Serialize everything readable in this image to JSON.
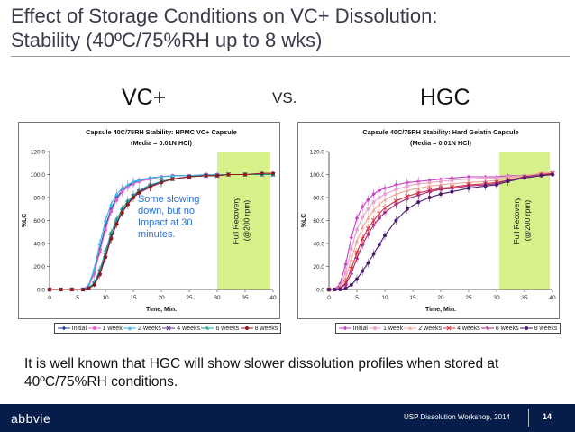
{
  "slide": {
    "title_line1": "Effect of Storage Conditions on VC+ Dissolution:",
    "title_line2": "Stability (40ºC/75%RH up to 8 wks)",
    "left_label": "VC+",
    "vs_label": "VS.",
    "right_label": "HGC",
    "note": "It is well known that HGC will show slower dissolution profiles when stored at 40ºC/75%RH conditions.",
    "footer_logo": "abbvie",
    "footer_event": "USP Dissolution Workshop, 2014",
    "page_number": "14"
  },
  "colors": {
    "footer_bg": "#071d49",
    "highlight": "#d6f08a"
  },
  "chart_data": [
    {
      "type": "line",
      "title": "Capsule 40C/75RH Stability: HPMC VC+ Capsule",
      "subtitle": "(Media = 0.01N HCl)",
      "xlabel": "Time, Min.",
      "ylabel": "%LC",
      "xlim": [
        0,
        40
      ],
      "ylim": [
        0,
        120
      ],
      "xticks": [
        "0",
        "5",
        "10",
        "15",
        "20",
        "25",
        "30",
        "35",
        "40"
      ],
      "yticks": [
        "0.0",
        "20.0",
        "40.0",
        "60.0",
        "80.0",
        "100.0",
        "120.0"
      ],
      "highlight_x": [
        30,
        39.5
      ],
      "highlight_label_line1": "Full Recovery",
      "highlight_label_line2": "(@200 rpm)",
      "annotation": [
        "Some slowing",
        "down, but no",
        "Impact at 30",
        "minutes."
      ],
      "x": [
        0,
        2,
        4,
        6,
        7,
        8,
        9,
        10,
        11,
        12,
        13,
        14,
        15,
        16,
        18,
        20,
        22,
        25,
        28,
        30,
        32,
        35,
        38,
        40
      ],
      "series": [
        {
          "name": "Initial",
          "color": "#1f3fa0",
          "marker": "diamond",
          "values": [
            0,
            0,
            0,
            0,
            3,
            15,
            35,
            55,
            70,
            80,
            86,
            90,
            93,
            95,
            97,
            98,
            99,
            99,
            100,
            100,
            100,
            100,
            100,
            100
          ]
        },
        {
          "name": "1 week",
          "color": "#e05cc8",
          "marker": "square",
          "values": [
            0,
            0,
            0,
            0,
            3,
            14,
            33,
            52,
            68,
            78,
            85,
            89,
            92,
            94,
            96,
            98,
            99,
            99,
            100,
            100,
            100,
            100,
            100,
            100
          ]
        },
        {
          "name": "2 weeks",
          "color": "#3ab6e8",
          "marker": "triangle",
          "values": [
            0,
            0,
            0,
            0,
            4,
            18,
            40,
            60,
            74,
            83,
            88,
            91,
            94,
            95,
            97,
            98,
            99,
            99,
            100,
            100,
            100,
            100,
            100,
            100
          ]
        },
        {
          "name": "4 weeks",
          "color": "#5b2a86",
          "marker": "x",
          "values": [
            0,
            0,
            0,
            0,
            1,
            5,
            15,
            30,
            46,
            58,
            68,
            75,
            81,
            85,
            90,
            94,
            96,
            98,
            99,
            99,
            100,
            100,
            100,
            100
          ]
        },
        {
          "name": "6 weeks",
          "color": "#1b9e9a",
          "marker": "star",
          "values": [
            0,
            0,
            0,
            0,
            1,
            6,
            17,
            33,
            49,
            61,
            70,
            77,
            82,
            86,
            91,
            94,
            96,
            98,
            99,
            99,
            100,
            100,
            100,
            100
          ]
        },
        {
          "name": "8 weeks",
          "color": "#8b1a1a",
          "marker": "circle",
          "values": [
            0,
            0,
            0,
            0,
            1,
            4,
            13,
            28,
            44,
            57,
            67,
            74,
            80,
            84,
            89,
            93,
            96,
            98,
            99,
            99,
            100,
            100,
            101,
            101
          ]
        }
      ]
    },
    {
      "type": "line",
      "title": "Capsule 40C/75RH Stability: Hard Gelatin Capsule",
      "subtitle": "(Media = 0.01N HCl)",
      "xlabel": "Time, Min.",
      "ylabel": "%LC",
      "xlim": [
        0,
        40
      ],
      "ylim": [
        0,
        120
      ],
      "xticks": [
        "0",
        "5",
        "10",
        "15",
        "20",
        "25",
        "30",
        "35",
        "40"
      ],
      "yticks": [
        "0.0",
        "20.0",
        "40.0",
        "60.0",
        "80.0",
        "100.0",
        "120.0"
      ],
      "highlight_x": [
        30.5,
        39.5
      ],
      "highlight_label_line1": "Full Recovery",
      "highlight_label_line2": "(@200 rpm)",
      "x": [
        0,
        1,
        2,
        3,
        4,
        5,
        6,
        7,
        8,
        9,
        10,
        12,
        14,
        16,
        18,
        20,
        22,
        25,
        28,
        30,
        32,
        35,
        38,
        40
      ],
      "series": [
        {
          "name": "Initial",
          "color": "#c640c6",
          "marker": "diamond",
          "values": [
            0,
            0,
            5,
            22,
            45,
            62,
            72,
            78,
            83,
            86,
            88,
            91,
            93,
            94,
            95,
            96,
            97,
            98,
            98,
            98,
            99,
            99,
            100,
            100
          ]
        },
        {
          "name": "1 week",
          "color": "#e8a0d0",
          "marker": "square",
          "values": [
            0,
            0,
            3,
            15,
            35,
            52,
            63,
            70,
            76,
            80,
            83,
            87,
            90,
            92,
            93,
            94,
            95,
            96,
            97,
            97,
            98,
            99,
            100,
            101
          ]
        },
        {
          "name": "2 weeks",
          "color": "#f0a898",
          "marker": "triangle",
          "values": [
            0,
            0,
            2,
            10,
            26,
            42,
            54,
            62,
            69,
            74,
            78,
            83,
            86,
            88,
            90,
            91,
            92,
            93,
            94,
            95,
            97,
            99,
            101,
            102
          ]
        },
        {
          "name": "4 weeks",
          "color": "#d8303a",
          "marker": "x",
          "values": [
            0,
            0,
            1,
            6,
            18,
            32,
            44,
            53,
            60,
            66,
            71,
            77,
            81,
            84,
            86,
            88,
            89,
            91,
            92,
            93,
            95,
            98,
            100,
            101
          ]
        },
        {
          "name": "6 weeks",
          "color": "#a0287a",
          "marker": "star",
          "values": [
            0,
            0,
            1,
            4,
            14,
            27,
            39,
            48,
            56,
            62,
            67,
            74,
            79,
            82,
            85,
            87,
            88,
            90,
            91,
            92,
            95,
            98,
            100,
            100
          ]
        },
        {
          "name": "8 weeks",
          "color": "#4a1a6e",
          "marker": "circle",
          "values": [
            0,
            0,
            0,
            1,
            4,
            9,
            16,
            23,
            31,
            39,
            47,
            60,
            70,
            76,
            80,
            83,
            85,
            88,
            90,
            91,
            94,
            97,
            99,
            100
          ]
        }
      ]
    }
  ]
}
